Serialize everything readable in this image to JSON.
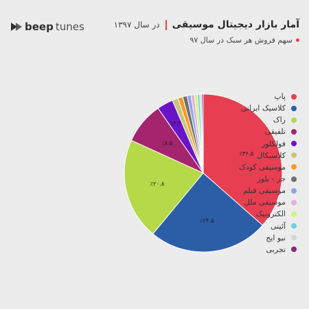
{
  "brand": {
    "bold": "beep",
    "light": "tunes"
  },
  "header": {
    "title": "آمار بازار دیجیتال موسیقی",
    "year": "در سال ۱۳۹۷",
    "subtitle": "سهم فروش هر سبک در سال ۹۷"
  },
  "colors": {
    "accent": "#e8414a"
  },
  "chart_data": {
    "type": "pie",
    "title": "آمار بازار دیجیتال موسیقی",
    "subtitle": "سهم فروش هر سبک در سال ۹۷",
    "legend_position": "right",
    "slices": [
      {
        "label": "پاپ",
        "value": 36.5,
        "data_label": "٪۳۶.۵",
        "color": "#e83e52"
      },
      {
        "label": "کلاسیک ایرانی",
        "value": 24.5,
        "data_label": "٪۲۴.۵",
        "color": "#2c5ea8"
      },
      {
        "label": "راک",
        "value": 20.8,
        "data_label": "٪۲۰.۸",
        "color": "#b6d94a"
      },
      {
        "label": "تلفیقی",
        "value": 8.5,
        "data_label": "٪۸.۵",
        "color": "#a4246e"
      },
      {
        "label": "فولکلور",
        "value": 3.3,
        "data_label": "٪۳.۳",
        "color": "#6a14c8"
      },
      {
        "label": "کلاسیکال",
        "value": 1.2,
        "data_label": "",
        "color": "#c9c47e"
      },
      {
        "label": "موسیقی کودک",
        "value": 1.0,
        "data_label": "",
        "color": "#f59a23"
      },
      {
        "label": "جز - بلوز",
        "value": 0.9,
        "data_label": "",
        "color": "#6e6e6e"
      },
      {
        "label": "موسیقی فیلم",
        "value": 0.8,
        "data_label": "",
        "color": "#8fa6e6"
      },
      {
        "label": "موسیقی ملل",
        "value": 0.7,
        "data_label": "",
        "color": "#e7b0d6"
      },
      {
        "label": "الکترونیک",
        "value": 0.6,
        "data_label": "",
        "color": "#cdf57a"
      },
      {
        "label": "آئینی",
        "value": 0.5,
        "data_label": "",
        "color": "#66d4e6"
      },
      {
        "label": "نیو ایج",
        "value": 0.4,
        "data_label": "",
        "color": "#d6d6d6"
      },
      {
        "label": "تجربی",
        "value": 0.3,
        "data_label": "",
        "color": "#8e2478"
      }
    ]
  }
}
